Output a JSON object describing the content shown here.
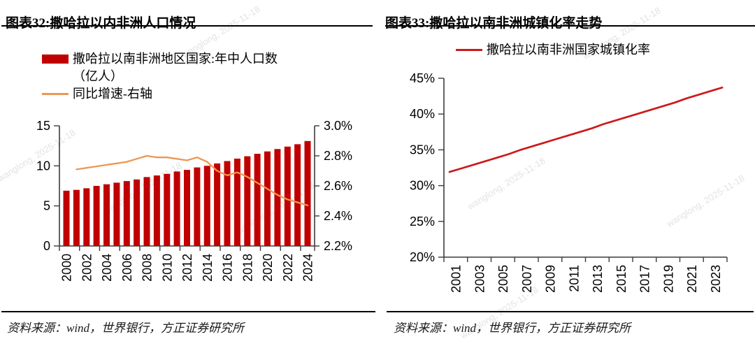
{
  "watermark_text": "wanglong, 2025-11-18",
  "colors": {
    "bar_red": "#C00000",
    "growth_orange": "#ED9752",
    "urban_red": "#CC1A1A",
    "axis": "#3c3c3c",
    "text": "#000000"
  },
  "left": {
    "title": "图表32:撒哈拉以内非洲人口情况",
    "legend": {
      "bar_label_line1": "撒哈拉以南非洲地区国家:年中人口数",
      "bar_label_line2": "（亿人）",
      "line_label": "同比增速-右轴"
    },
    "source": "资料来源：wind，世界银行，方正证券研究所"
  },
  "right": {
    "title": "图表33:撒哈拉以南非洲城镇化率走势",
    "legend": {
      "line_label": "撒哈拉以南非洲国家城镇化率"
    },
    "source": "资料来源：wind，世界银行，方正证券研究所"
  },
  "chart_data": [
    {
      "type": "bar",
      "title": "撒哈拉以内非洲人口情况",
      "categories": [
        2000,
        2001,
        2002,
        2003,
        2004,
        2005,
        2006,
        2007,
        2008,
        2009,
        2010,
        2011,
        2012,
        2013,
        2014,
        2015,
        2016,
        2017,
        2018,
        2019,
        2020,
        2021,
        2022,
        2023,
        2024
      ],
      "series": [
        {
          "name": "撒哈拉以南非洲地区国家:年中人口数（亿人）",
          "type": "bar",
          "axis": "left",
          "color": "#C00000",
          "values": [
            6.9,
            7.0,
            7.2,
            7.5,
            7.7,
            7.9,
            8.1,
            8.3,
            8.6,
            8.8,
            9.0,
            9.3,
            9.5,
            9.8,
            10.0,
            10.3,
            10.6,
            10.9,
            11.2,
            11.5,
            11.8,
            12.1,
            12.4,
            12.7,
            13.1
          ]
        },
        {
          "name": "同比增速-右轴",
          "type": "line",
          "axis": "right",
          "color": "#ED9752",
          "x": [
            2001,
            2002,
            2003,
            2004,
            2005,
            2006,
            2007,
            2008,
            2009,
            2010,
            2011,
            2012,
            2013,
            2014,
            2015,
            2016,
            2017,
            2018,
            2019,
            2020,
            2021,
            2022,
            2023,
            2024
          ],
          "values": [
            2.71,
            2.72,
            2.73,
            2.74,
            2.75,
            2.76,
            2.78,
            2.8,
            2.79,
            2.79,
            2.78,
            2.77,
            2.79,
            2.76,
            2.7,
            2.67,
            2.69,
            2.66,
            2.62,
            2.58,
            2.54,
            2.51,
            2.49,
            2.47
          ]
        }
      ],
      "left_axis": {
        "min": 0,
        "max": 15,
        "ticks": [
          0,
          5,
          10,
          15
        ],
        "labels": [
          "0",
          "5",
          "10",
          "15"
        ]
      },
      "right_axis": {
        "min": 2.2,
        "max": 3.0,
        "ticks": [
          2.2,
          2.4,
          2.6,
          2.8,
          3.0
        ],
        "labels": [
          "2.2%",
          "2.4%",
          "2.6%",
          "2.8%",
          "3.0%"
        ]
      },
      "x_tick_labels": [
        "2000",
        "2002",
        "2004",
        "2006",
        "2008",
        "2010",
        "2012",
        "2014",
        "2016",
        "2018",
        "2020",
        "2022",
        "2024"
      ],
      "grid": false,
      "legend_position": "top-left"
    },
    {
      "type": "line",
      "title": "撒哈拉以南非洲城镇化率走势",
      "series": [
        {
          "name": "撒哈拉以南非洲国家城镇化率",
          "type": "line",
          "color": "#CC1A1A",
          "x": [
            2001,
            2002,
            2003,
            2004,
            2005,
            2006,
            2007,
            2008,
            2009,
            2010,
            2011,
            2012,
            2013,
            2014,
            2015,
            2016,
            2017,
            2018,
            2019,
            2020,
            2021,
            2022,
            2023,
            2024
          ],
          "values": [
            31.9,
            32.4,
            32.9,
            33.4,
            33.9,
            34.4,
            35.0,
            35.5,
            36.0,
            36.5,
            37.0,
            37.5,
            38.0,
            38.6,
            39.1,
            39.6,
            40.1,
            40.6,
            41.1,
            41.6,
            42.2,
            42.7,
            43.2,
            43.7
          ]
        }
      ],
      "y_axis": {
        "min": 20,
        "max": 45,
        "ticks": [
          20,
          25,
          30,
          35,
          40,
          45
        ],
        "labels": [
          "20%",
          "25%",
          "30%",
          "35%",
          "40%",
          "45%"
        ]
      },
      "x_tick_labels": [
        "2001",
        "2003",
        "2005",
        "2007",
        "2009",
        "2011",
        "2013",
        "2015",
        "2017",
        "2019",
        "2021",
        "2023"
      ],
      "grid": false,
      "legend_position": "top-center"
    }
  ]
}
